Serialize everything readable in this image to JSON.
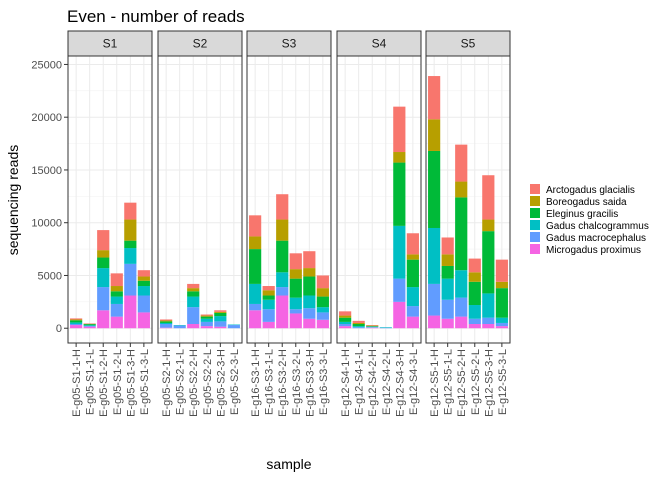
{
  "chart_data": {
    "type": "bar",
    "stacked": true,
    "title": "Even - number of reads",
    "xlabel": "sample",
    "ylabel": "sequencing reads",
    "ylim": [
      -1400,
      25800
    ],
    "yticks": [
      0,
      5000,
      10000,
      15000,
      20000,
      25000
    ],
    "ytick_labels": [
      "0",
      "5000",
      "10000",
      "15000",
      "20000",
      "25000"
    ],
    "legend_position": "right",
    "grid": true,
    "species": [
      {
        "name": "Arctogadus glacialis",
        "color": "#F8766D"
      },
      {
        "name": "Boreogadus saida",
        "color": "#B79F00"
      },
      {
        "name": "Eleginus gracilis",
        "color": "#00BA38"
      },
      {
        "name": "Gadus chalcogrammus",
        "color": "#00BFC4"
      },
      {
        "name": "Gadus macrocephalus",
        "color": "#619CFF"
      },
      {
        "name": "Microgadus proximus",
        "color": "#F564E3"
      }
    ],
    "stack_order_bottom_to_top": [
      5,
      4,
      3,
      2,
      1,
      0
    ],
    "panels": [
      {
        "label": "S1",
        "samples": [
          {
            "name": "E-g05-S1-1-H",
            "values": [
              100,
              80,
              200,
              150,
              100,
              300
            ]
          },
          {
            "name": "E-g05-S1-1-L",
            "values": [
              40,
              30,
              100,
              80,
              60,
              150
            ]
          },
          {
            "name": "E-g05-S1-2-H",
            "values": [
              1900,
              700,
              1000,
              1800,
              2200,
              1700
            ]
          },
          {
            "name": "E-g05-S1-2-L",
            "values": [
              1200,
              500,
              500,
              700,
              1200,
              1100
            ]
          },
          {
            "name": "E-g05-S1-3-H",
            "values": [
              1600,
              2000,
              700,
              1500,
              3000,
              3100
            ]
          },
          {
            "name": "E-g05-S1-3-L",
            "values": [
              600,
              400,
              500,
              900,
              1600,
              1500
            ]
          }
        ]
      },
      {
        "label": "S2",
        "samples": [
          {
            "name": "E-g05-S2-1-H",
            "values": [
              100,
              80,
              150,
              100,
              350,
              50
            ]
          },
          {
            "name": "E-g05-S2-1-L",
            "values": [
              0,
              0,
              0,
              50,
              250,
              0
            ]
          },
          {
            "name": "E-g05-S2-2-H",
            "values": [
              400,
              300,
              500,
              1000,
              1600,
              400
            ]
          },
          {
            "name": "E-g05-S2-2-L",
            "values": [
              100,
              100,
              200,
              300,
              400,
              200
            ]
          },
          {
            "name": "E-g05-S2-3-H",
            "values": [
              150,
              100,
              300,
              500,
              500,
              150
            ]
          },
          {
            "name": "E-g05-S2-3-L",
            "values": [
              0,
              0,
              0,
              50,
              300,
              0
            ]
          }
        ]
      },
      {
        "label": "S3",
        "samples": [
          {
            "name": "E-g16-S3-1-H",
            "values": [
              2000,
              1200,
              3300,
              1900,
              600,
              1700
            ]
          },
          {
            "name": "E-g16-S3-1-L",
            "values": [
              400,
              500,
              400,
              900,
              1200,
              600
            ]
          },
          {
            "name": "E-g16-S3-2-H",
            "values": [
              2400,
              2000,
              3000,
              1400,
              800,
              3100
            ]
          },
          {
            "name": "E-g16-S3-2-L",
            "values": [
              1500,
              900,
              1800,
              1100,
              400,
              1400
            ]
          },
          {
            "name": "E-g16-S3-3-H",
            "values": [
              1600,
              800,
              1800,
              1200,
              1000,
              900
            ]
          },
          {
            "name": "E-g16-S3-3-L",
            "values": [
              1200,
              800,
              1000,
              500,
              700,
              800
            ]
          }
        ]
      },
      {
        "label": "S4",
        "samples": [
          {
            "name": "E-g12-S4-1-H",
            "values": [
              400,
              200,
              400,
              200,
              200,
              200
            ]
          },
          {
            "name": "E-g12-S4-1-L",
            "values": [
              200,
              100,
              200,
              100,
              100,
              0
            ]
          },
          {
            "name": "E-g12-S4-2-H",
            "values": [
              50,
              50,
              50,
              50,
              50,
              50
            ]
          },
          {
            "name": "E-g12-S4-2-L",
            "values": [
              0,
              0,
              0,
              50,
              50,
              0
            ]
          },
          {
            "name": "E-g12-S4-3-H",
            "values": [
              4300,
              1000,
              6000,
              5000,
              2200,
              2500
            ]
          },
          {
            "name": "E-g12-S4-3-L",
            "values": [
              2000,
              500,
              2600,
              1800,
              1000,
              1100
            ]
          }
        ]
      },
      {
        "label": "S5",
        "samples": [
          {
            "name": "E-g12-S5-1-H",
            "values": [
              4100,
              3000,
              7300,
              5300,
              3000,
              1200
            ]
          },
          {
            "name": "E-g12-S5-1-L",
            "values": [
              1600,
              1100,
              1200,
              2000,
              1800,
              900
            ]
          },
          {
            "name": "E-g12-S5-2-H",
            "values": [
              3500,
              1500,
              6900,
              2600,
              1800,
              1100
            ]
          },
          {
            "name": "E-g12-S5-2-L",
            "values": [
              1300,
              900,
              2200,
              1300,
              500,
              400
            ]
          },
          {
            "name": "E-g12-S5-3-H",
            "values": [
              4200,
              1100,
              5900,
              2300,
              600,
              400
            ]
          },
          {
            "name": "E-g12-S5-3-L",
            "values": [
              2100,
              600,
              2800,
              500,
              300,
              200
            ]
          }
        ]
      }
    ]
  }
}
